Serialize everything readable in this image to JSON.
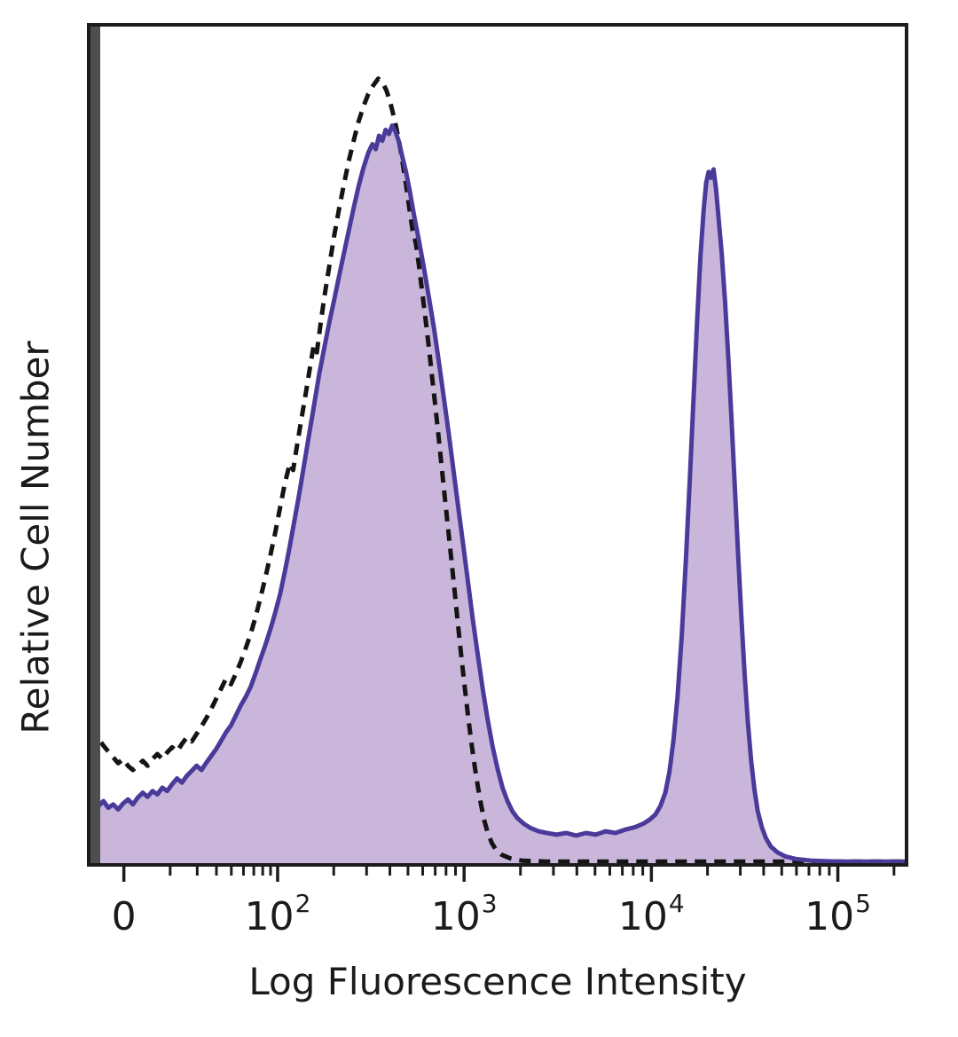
{
  "page": {
    "background": "#ffffff"
  },
  "chart_data": {
    "type": "area",
    "title": "",
    "xlabel": "Log Fluorescence Intensity",
    "ylabel": "Relative Cell Number",
    "x_scale": "biexponential-log",
    "y_axis": {
      "ticks_visible": false,
      "range_note": "relative, unlabeled"
    },
    "frame_color": "#1c1c1c",
    "left_spine_color": "#4e4e4e",
    "text_color": "#1b1b1b",
    "x_ticks": [
      {
        "label": "0",
        "exp": null,
        "u": 0.043
      },
      {
        "label": "10",
        "exp": "2",
        "u": 0.231
      },
      {
        "label": "10",
        "exp": "3",
        "u": 0.459
      },
      {
        "label": "10",
        "exp": "4",
        "u": 0.688
      },
      {
        "label": "10",
        "exp": "5",
        "u": 0.916
      }
    ],
    "series": [
      {
        "name": "dashed-outline-histogram",
        "style": "dashed",
        "stroke": "#141414",
        "stroke_width": 5,
        "fill": "none",
        "peak": {
          "u": 0.354,
          "h": 0.936
        },
        "points": [
          [
            0,
            0.15
          ],
          [
            0.006,
            0.143
          ],
          [
            0.012,
            0.15
          ],
          [
            0.018,
            0.142
          ],
          [
            0.024,
            0.135
          ],
          [
            0.03,
            0.128
          ],
          [
            0.036,
            0.121
          ],
          [
            0.042,
            0.126
          ],
          [
            0.048,
            0.118
          ],
          [
            0.054,
            0.113
          ],
          [
            0.06,
            0.118
          ],
          [
            0.066,
            0.124
          ],
          [
            0.072,
            0.118
          ],
          [
            0.078,
            0.126
          ],
          [
            0.084,
            0.132
          ],
          [
            0.09,
            0.126
          ],
          [
            0.096,
            0.134
          ],
          [
            0.102,
            0.14
          ],
          [
            0.108,
            0.135
          ],
          [
            0.114,
            0.144
          ],
          [
            0.12,
            0.152
          ],
          [
            0.126,
            0.147
          ],
          [
            0.132,
            0.156
          ],
          [
            0.138,
            0.165
          ],
          [
            0.144,
            0.175
          ],
          [
            0.15,
            0.186
          ],
          [
            0.156,
            0.198
          ],
          [
            0.162,
            0.21
          ],
          [
            0.168,
            0.222
          ],
          [
            0.174,
            0.215
          ],
          [
            0.18,
            0.228
          ],
          [
            0.186,
            0.242
          ],
          [
            0.192,
            0.258
          ],
          [
            0.198,
            0.275
          ],
          [
            0.204,
            0.295
          ],
          [
            0.21,
            0.318
          ],
          [
            0.216,
            0.342
          ],
          [
            0.222,
            0.368
          ],
          [
            0.228,
            0.395
          ],
          [
            0.234,
            0.425
          ],
          [
            0.24,
            0.455
          ],
          [
            0.246,
            0.478
          ],
          [
            0.25,
            0.47
          ],
          [
            0.254,
            0.495
          ],
          [
            0.26,
            0.53
          ],
          [
            0.266,
            0.565
          ],
          [
            0.271,
            0.595
          ],
          [
            0.275,
            0.618
          ],
          [
            0.279,
            0.61
          ],
          [
            0.283,
            0.64
          ],
          [
            0.288,
            0.675
          ],
          [
            0.294,
            0.712
          ],
          [
            0.3,
            0.748
          ],
          [
            0.306,
            0.78
          ],
          [
            0.312,
            0.81
          ],
          [
            0.318,
            0.838
          ],
          [
            0.324,
            0.862
          ],
          [
            0.33,
            0.885
          ],
          [
            0.336,
            0.903
          ],
          [
            0.342,
            0.918
          ],
          [
            0.348,
            0.928
          ],
          [
            0.354,
            0.936
          ],
          [
            0.36,
            0.93
          ],
          [
            0.364,
            0.922
          ],
          [
            0.368,
            0.91
          ],
          [
            0.372,
            0.895
          ],
          [
            0.376,
            0.878
          ],
          [
            0.38,
            0.858
          ],
          [
            0.384,
            0.835
          ],
          [
            0.388,
            0.81
          ],
          [
            0.392,
            0.782
          ],
          [
            0.396,
            0.755
          ],
          [
            0.4,
            0.74
          ],
          [
            0.404,
            0.712
          ],
          [
            0.408,
            0.68
          ],
          [
            0.412,
            0.648
          ],
          [
            0.416,
            0.615
          ],
          [
            0.42,
            0.58
          ],
          [
            0.424,
            0.545
          ],
          [
            0.428,
            0.508
          ],
          [
            0.432,
            0.47
          ],
          [
            0.436,
            0.432
          ],
          [
            0.44,
            0.395
          ],
          [
            0.444,
            0.358
          ],
          [
            0.448,
            0.32
          ],
          [
            0.452,
            0.282
          ],
          [
            0.456,
            0.245
          ],
          [
            0.46,
            0.21
          ],
          [
            0.464,
            0.176
          ],
          [
            0.468,
            0.145
          ],
          [
            0.472,
            0.117
          ],
          [
            0.476,
            0.092
          ],
          [
            0.48,
            0.07
          ],
          [
            0.484,
            0.052
          ],
          [
            0.488,
            0.038
          ],
          [
            0.493,
            0.026
          ],
          [
            0.498,
            0.018
          ],
          [
            0.505,
            0.012
          ],
          [
            0.515,
            0.008
          ],
          [
            0.53,
            0.005
          ],
          [
            0.56,
            0.004
          ],
          [
            0.64,
            0.004
          ],
          [
            0.74,
            0.004
          ],
          [
            0.86,
            0.004
          ],
          [
            1,
            0.004
          ]
        ]
      },
      {
        "name": "solid-filled-histogram",
        "style": "solid",
        "stroke": "#4a3a99",
        "stroke_width": 5,
        "fill": "#c9b6da",
        "fill_opacity": 1,
        "peaks": [
          {
            "u": 0.371,
            "h": 0.88
          },
          {
            "u": 0.764,
            "h": 0.828
          }
        ],
        "points": [
          [
            0,
            0.085
          ],
          [
            0.006,
            0.078
          ],
          [
            0.012,
            0.07
          ],
          [
            0.018,
            0.076
          ],
          [
            0.024,
            0.068
          ],
          [
            0.03,
            0.072
          ],
          [
            0.036,
            0.066
          ],
          [
            0.042,
            0.073
          ],
          [
            0.048,
            0.078
          ],
          [
            0.054,
            0.072
          ],
          [
            0.06,
            0.08
          ],
          [
            0.066,
            0.086
          ],
          [
            0.072,
            0.081
          ],
          [
            0.078,
            0.088
          ],
          [
            0.084,
            0.084
          ],
          [
            0.09,
            0.092
          ],
          [
            0.096,
            0.088
          ],
          [
            0.102,
            0.096
          ],
          [
            0.108,
            0.103
          ],
          [
            0.114,
            0.098
          ],
          [
            0.12,
            0.106
          ],
          [
            0.126,
            0.112
          ],
          [
            0.132,
            0.118
          ],
          [
            0.138,
            0.113
          ],
          [
            0.144,
            0.122
          ],
          [
            0.15,
            0.13
          ],
          [
            0.156,
            0.138
          ],
          [
            0.162,
            0.148
          ],
          [
            0.168,
            0.158
          ],
          [
            0.174,
            0.166
          ],
          [
            0.18,
            0.178
          ],
          [
            0.186,
            0.19
          ],
          [
            0.192,
            0.2
          ],
          [
            0.198,
            0.212
          ],
          [
            0.204,
            0.228
          ],
          [
            0.21,
            0.245
          ],
          [
            0.216,
            0.262
          ],
          [
            0.222,
            0.28
          ],
          [
            0.228,
            0.3
          ],
          [
            0.234,
            0.322
          ],
          [
            0.24,
            0.35
          ],
          [
            0.246,
            0.38
          ],
          [
            0.252,
            0.412
          ],
          [
            0.258,
            0.445
          ],
          [
            0.264,
            0.48
          ],
          [
            0.27,
            0.515
          ],
          [
            0.276,
            0.55
          ],
          [
            0.282,
            0.585
          ],
          [
            0.288,
            0.615
          ],
          [
            0.294,
            0.645
          ],
          [
            0.3,
            0.672
          ],
          [
            0.306,
            0.7
          ],
          [
            0.312,
            0.728
          ],
          [
            0.318,
            0.755
          ],
          [
            0.324,
            0.782
          ],
          [
            0.33,
            0.808
          ],
          [
            0.336,
            0.83
          ],
          [
            0.342,
            0.848
          ],
          [
            0.347,
            0.858
          ],
          [
            0.351,
            0.852
          ],
          [
            0.355,
            0.868
          ],
          [
            0.359,
            0.862
          ],
          [
            0.363,
            0.875
          ],
          [
            0.367,
            0.87
          ],
          [
            0.371,
            0.88
          ],
          [
            0.375,
            0.873
          ],
          [
            0.379,
            0.862
          ],
          [
            0.383,
            0.845
          ],
          [
            0.388,
            0.825
          ],
          [
            0.393,
            0.8
          ],
          [
            0.398,
            0.772
          ],
          [
            0.404,
            0.742
          ],
          [
            0.41,
            0.71
          ],
          [
            0.416,
            0.675
          ],
          [
            0.422,
            0.64
          ],
          [
            0.428,
            0.6
          ],
          [
            0.434,
            0.558
          ],
          [
            0.44,
            0.515
          ],
          [
            0.446,
            0.47
          ],
          [
            0.452,
            0.425
          ],
          [
            0.458,
            0.38
          ],
          [
            0.464,
            0.335
          ],
          [
            0.47,
            0.29
          ],
          [
            0.476,
            0.248
          ],
          [
            0.482,
            0.208
          ],
          [
            0.488,
            0.172
          ],
          [
            0.494,
            0.14
          ],
          [
            0.5,
            0.114
          ],
          [
            0.506,
            0.092
          ],
          [
            0.512,
            0.076
          ],
          [
            0.518,
            0.064
          ],
          [
            0.524,
            0.056
          ],
          [
            0.532,
            0.049
          ],
          [
            0.54,
            0.044
          ],
          [
            0.55,
            0.04
          ],
          [
            0.56,
            0.038
          ],
          [
            0.572,
            0.036
          ],
          [
            0.584,
            0.038
          ],
          [
            0.596,
            0.035
          ],
          [
            0.608,
            0.038
          ],
          [
            0.62,
            0.036
          ],
          [
            0.632,
            0.04
          ],
          [
            0.644,
            0.038
          ],
          [
            0.656,
            0.042
          ],
          [
            0.668,
            0.045
          ],
          [
            0.678,
            0.049
          ],
          [
            0.686,
            0.054
          ],
          [
            0.693,
            0.06
          ],
          [
            0.699,
            0.07
          ],
          [
            0.705,
            0.086
          ],
          [
            0.71,
            0.11
          ],
          [
            0.715,
            0.148
          ],
          [
            0.72,
            0.2
          ],
          [
            0.725,
            0.27
          ],
          [
            0.73,
            0.36
          ],
          [
            0.735,
            0.46
          ],
          [
            0.74,
            0.565
          ],
          [
            0.744,
            0.65
          ],
          [
            0.748,
            0.725
          ],
          [
            0.752,
            0.78
          ],
          [
            0.755,
            0.812
          ],
          [
            0.758,
            0.825
          ],
          [
            0.761,
            0.818
          ],
          [
            0.764,
            0.828
          ],
          [
            0.767,
            0.805
          ],
          [
            0.77,
            0.772
          ],
          [
            0.774,
            0.728
          ],
          [
            0.778,
            0.672
          ],
          [
            0.782,
            0.605
          ],
          [
            0.786,
            0.53
          ],
          [
            0.79,
            0.45
          ],
          [
            0.794,
            0.37
          ],
          [
            0.798,
            0.295
          ],
          [
            0.802,
            0.228
          ],
          [
            0.806,
            0.17
          ],
          [
            0.81,
            0.124
          ],
          [
            0.814,
            0.09
          ],
          [
            0.818,
            0.064
          ],
          [
            0.823,
            0.045
          ],
          [
            0.828,
            0.032
          ],
          [
            0.834,
            0.022
          ],
          [
            0.842,
            0.015
          ],
          [
            0.852,
            0.01
          ],
          [
            0.865,
            0.007
          ],
          [
            0.885,
            0.005
          ],
          [
            0.915,
            0.004
          ],
          [
            0.955,
            0.004
          ],
          [
            1,
            0.004
          ]
        ]
      }
    ]
  }
}
